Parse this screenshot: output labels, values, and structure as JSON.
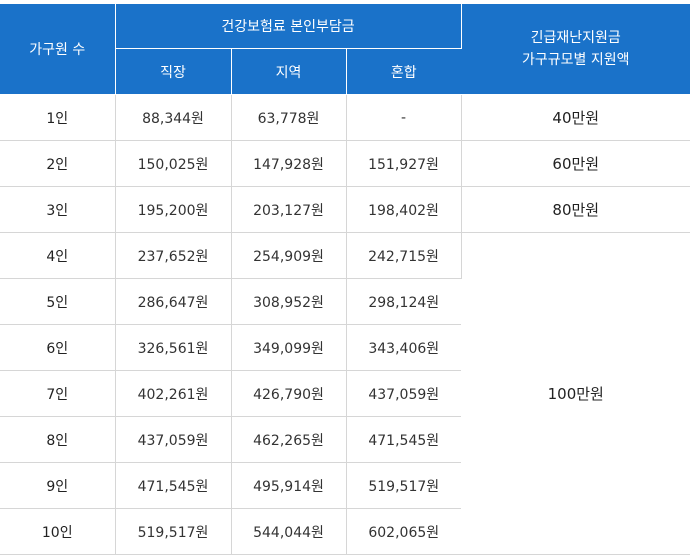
{
  "table": {
    "header": {
      "household": "가구원 수",
      "premium_group": "건강보험료 본인부담금",
      "premium_cols": [
        "직장",
        "지역",
        "혼합"
      ],
      "grant_title_line1": "긴급재난지원금",
      "grant_title_line2": "가구규모별 지원액"
    },
    "rows": [
      {
        "size": "1인",
        "employee": "88,344원",
        "regional": "63,778원",
        "mixed": "-",
        "grant": "40만원"
      },
      {
        "size": "2인",
        "employee": "150,025원",
        "regional": "147,928원",
        "mixed": "151,927원",
        "grant": "60만원"
      },
      {
        "size": "3인",
        "employee": "195,200원",
        "regional": "203,127원",
        "mixed": "198,402원",
        "grant": "80만원"
      },
      {
        "size": "4인",
        "employee": "237,652원",
        "regional": "254,909원",
        "mixed": "242,715원"
      },
      {
        "size": "5인",
        "employee": "286,647원",
        "regional": "308,952원",
        "mixed": "298,124원"
      },
      {
        "size": "6인",
        "employee": "326,561원",
        "regional": "349,099원",
        "mixed": "343,406원"
      },
      {
        "size": "7인",
        "employee": "402,261원",
        "regional": "426,790원",
        "mixed": "437,059원"
      },
      {
        "size": "8인",
        "employee": "437,059원",
        "regional": "462,265원",
        "mixed": "471,545원"
      },
      {
        "size": "9인",
        "employee": "471,545원",
        "regional": "495,914원",
        "mixed": "519,517원"
      },
      {
        "size": "10인",
        "employee": "519,517원",
        "regional": "544,044원",
        "mixed": "602,065원"
      }
    ],
    "grant_4plus": "100만원"
  },
  "colors": {
    "header_bg": "#1a72c9",
    "header_text": "#ffffff",
    "border": "#d6d6d6"
  }
}
